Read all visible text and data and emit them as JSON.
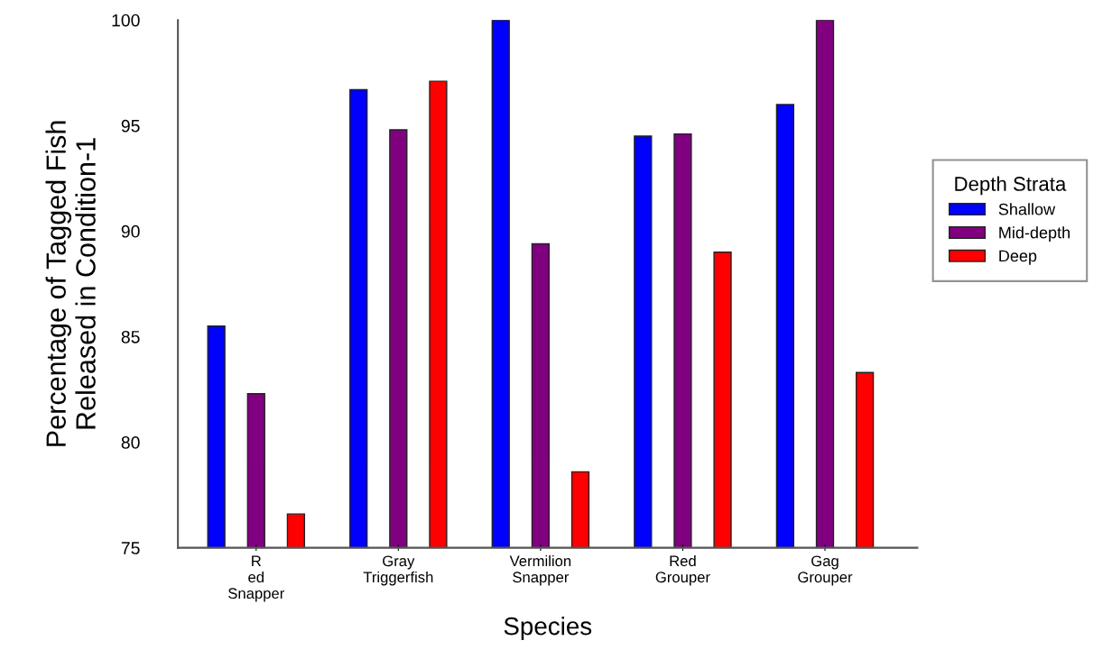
{
  "chart_data": {
    "type": "bar",
    "xlabel": "Species",
    "ylabel": "Percentage of Tagged Fish\nReleased in Condition-1",
    "legend_title": "Depth Strata",
    "categories": [
      "R\ned\nSnapper",
      "Gray\nTriggerfish",
      "Vermilion\nSnapper",
      "Red\nGrouper",
      "Gag\nGrouper"
    ],
    "series": [
      {
        "name": "Shallow",
        "color": "#0000ff",
        "values": [
          85.5,
          96.7,
          100,
          94.5,
          96.0
        ]
      },
      {
        "name": "Mid-depth",
        "color": "#800080",
        "values": [
          82.3,
          94.8,
          89.4,
          94.6,
          100
        ]
      },
      {
        "name": "Deep",
        "color": "#ff0000",
        "values": [
          76.6,
          97.1,
          78.6,
          89.0,
          83.3
        ]
      }
    ],
    "ylim": [
      75,
      100
    ],
    "yticks": [
      75,
      80,
      85,
      90,
      95,
      100
    ],
    "grid": false,
    "legend": "right"
  }
}
